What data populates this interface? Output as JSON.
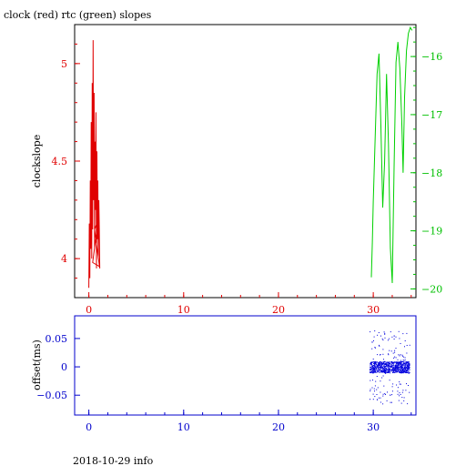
{
  "title": "clock (red) rtc (green) slopes",
  "footer": "2018-10-29 info",
  "colors": {
    "clock": "#e00000",
    "rtc": "#00d000",
    "offset": "#0000dd",
    "axis_blue": "#0000cc"
  },
  "chart_data": [
    {
      "type": "line",
      "ylabel": "clockslope",
      "xlim": [
        -1.5,
        34.5
      ],
      "ylim_left": [
        3.8,
        5.2
      ],
      "ylim_right": [
        -20.15,
        -15.45
      ],
      "x_ticks": [
        0,
        10,
        20,
        30
      ],
      "left_ticks": [
        4,
        4.5,
        5
      ],
      "right_ticks": [
        -16,
        -17,
        -18,
        -19,
        -20
      ],
      "series": [
        {
          "axis": "left",
          "values_xy": [
            [
              0.0,
              3.85
            ],
            [
              0.05,
              4.18
            ],
            [
              0.1,
              3.9
            ],
            [
              0.15,
              4.4
            ],
            [
              0.2,
              4.05
            ],
            [
              0.25,
              4.7
            ],
            [
              0.3,
              4.0
            ],
            [
              0.35,
              4.9
            ],
            [
              0.4,
              4.15
            ],
            [
              0.45,
              5.12
            ],
            [
              0.5,
              4.3
            ],
            [
              0.55,
              4.85
            ],
            [
              0.6,
              4.05
            ],
            [
              0.65,
              4.6
            ],
            [
              0.7,
              4.25
            ],
            [
              0.75,
              4.75
            ],
            [
              0.8,
              3.95
            ],
            [
              0.85,
              4.55
            ],
            [
              0.9,
              4.1
            ],
            [
              0.95,
              4.4
            ],
            [
              1.0,
              4.0
            ],
            [
              1.05,
              4.3
            ],
            [
              1.1,
              4.15
            ],
            [
              1.15,
              3.95
            ],
            [
              0.6,
              4.15
            ],
            [
              1.0,
              4.2
            ],
            [
              0.4,
              3.98
            ],
            [
              1.1,
              3.96
            ]
          ]
        },
        {
          "axis": "right",
          "values_xy": [
            [
              29.8,
              -19.8
            ],
            [
              29.9,
              -19.2
            ],
            [
              30.0,
              -18.5
            ],
            [
              30.2,
              -17.4
            ],
            [
              30.4,
              -16.3
            ],
            [
              30.6,
              -15.95
            ],
            [
              30.8,
              -17.2
            ],
            [
              31.0,
              -18.6
            ],
            [
              31.2,
              -17.8
            ],
            [
              31.4,
              -16.3
            ],
            [
              31.6,
              -17.5
            ],
            [
              31.8,
              -19.3
            ],
            [
              32.0,
              -19.9
            ],
            [
              32.2,
              -17.9
            ],
            [
              32.4,
              -16.1
            ],
            [
              32.6,
              -15.75
            ],
            [
              32.8,
              -16.2
            ],
            [
              33.0,
              -17.1
            ],
            [
              33.15,
              -18.0
            ],
            [
              33.3,
              -16.7
            ],
            [
              33.5,
              -15.9
            ],
            [
              33.7,
              -15.6
            ],
            [
              33.9,
              -15.5
            ],
            [
              34.1,
              -15.55
            ]
          ]
        }
      ]
    },
    {
      "type": "scatter",
      "ylabel": "offset(ms)",
      "xlim": [
        -1.5,
        34.5
      ],
      "ylim": [
        -0.085,
        0.09
      ],
      "x_ticks": [
        0,
        10,
        20,
        30
      ],
      "y_ticks": [
        0.05,
        0,
        -0.05
      ],
      "y_tick_labels": [
        "0.05",
        "0",
        "-0.05"
      ],
      "band_x_range": [
        29.6,
        33.8
      ],
      "band_core": 0.01,
      "band_spread": 0.065
    }
  ]
}
